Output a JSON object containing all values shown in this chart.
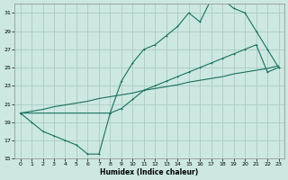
{
  "xlabel": "Humidex (Indice chaleur)",
  "bg_color": "#cce8e0",
  "grid_color": "#aaccc4",
  "line_color": "#1a7060",
  "xlim": [
    -0.5,
    23.5
  ],
  "ylim": [
    15,
    32
  ],
  "yticks": [
    15,
    17,
    19,
    21,
    23,
    25,
    27,
    29,
    31
  ],
  "xticks": [
    0,
    1,
    2,
    3,
    4,
    5,
    6,
    7,
    8,
    9,
    10,
    11,
    12,
    13,
    14,
    15,
    16,
    17,
    18,
    19,
    20,
    21,
    22,
    23
  ],
  "line1_x": [
    0,
    1,
    2,
    3,
    4,
    5,
    6,
    7,
    8,
    9,
    10,
    11,
    12,
    13,
    14,
    15,
    16,
    17,
    18,
    19,
    20,
    21,
    22,
    23
  ],
  "line1_y": [
    20.0,
    19.0,
    18.0,
    17.5,
    17.0,
    16.5,
    15.5,
    15.5,
    20.0,
    23.5,
    25.5,
    27.0,
    27.5,
    28.5,
    29.5,
    31.0,
    30.0,
    32.5,
    32.5,
    31.5,
    31.0,
    29.0,
    27.0,
    25.0
  ],
  "line2_x": [
    0,
    1,
    2,
    3,
    4,
    5,
    6,
    7,
    8,
    9,
    10,
    11,
    12,
    13,
    14,
    15,
    16,
    17,
    18,
    19,
    20,
    21,
    22,
    23
  ],
  "line2_y": [
    20.0,
    20.2,
    20.4,
    20.7,
    20.9,
    21.1,
    21.3,
    21.6,
    21.8,
    22.0,
    22.2,
    22.5,
    22.7,
    22.9,
    23.1,
    23.4,
    23.6,
    23.8,
    24.0,
    24.3,
    24.5,
    24.7,
    24.9,
    25.2
  ],
  "line3_x": [
    0,
    8,
    9,
    10,
    11,
    12,
    13,
    14,
    15,
    16,
    17,
    18,
    19,
    20,
    21,
    22,
    23
  ],
  "line3_y": [
    20.0,
    20.0,
    20.5,
    21.5,
    22.5,
    23.0,
    23.5,
    24.0,
    24.5,
    25.0,
    25.5,
    26.0,
    26.5,
    27.0,
    27.5,
    24.5,
    25.0
  ]
}
